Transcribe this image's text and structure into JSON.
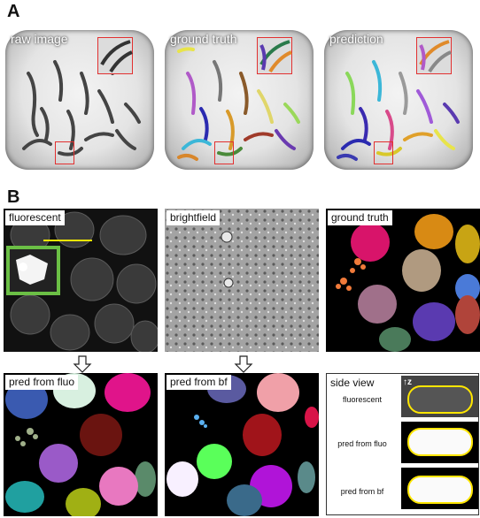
{
  "panelA": {
    "letter": "A",
    "images": [
      {
        "label": "raw image"
      },
      {
        "label": "ground truth"
      },
      {
        "label": "prediction"
      }
    ]
  },
  "panelB": {
    "letter": "B",
    "top_labels": [
      "fluorescent",
      "brightfield",
      "ground truth"
    ],
    "bottom_labels": [
      "pred from fluo",
      "pred from bf"
    ],
    "side_view": {
      "title": "side view",
      "axis": "z",
      "rows": [
        "fluorescent",
        "pred from fluo",
        "pred from bf"
      ]
    }
  },
  "colors": {
    "highlight_box": "#e23030",
    "inset_box": "#6bbf45",
    "scan_line": "#f2e600",
    "outline": "#ffe600"
  }
}
